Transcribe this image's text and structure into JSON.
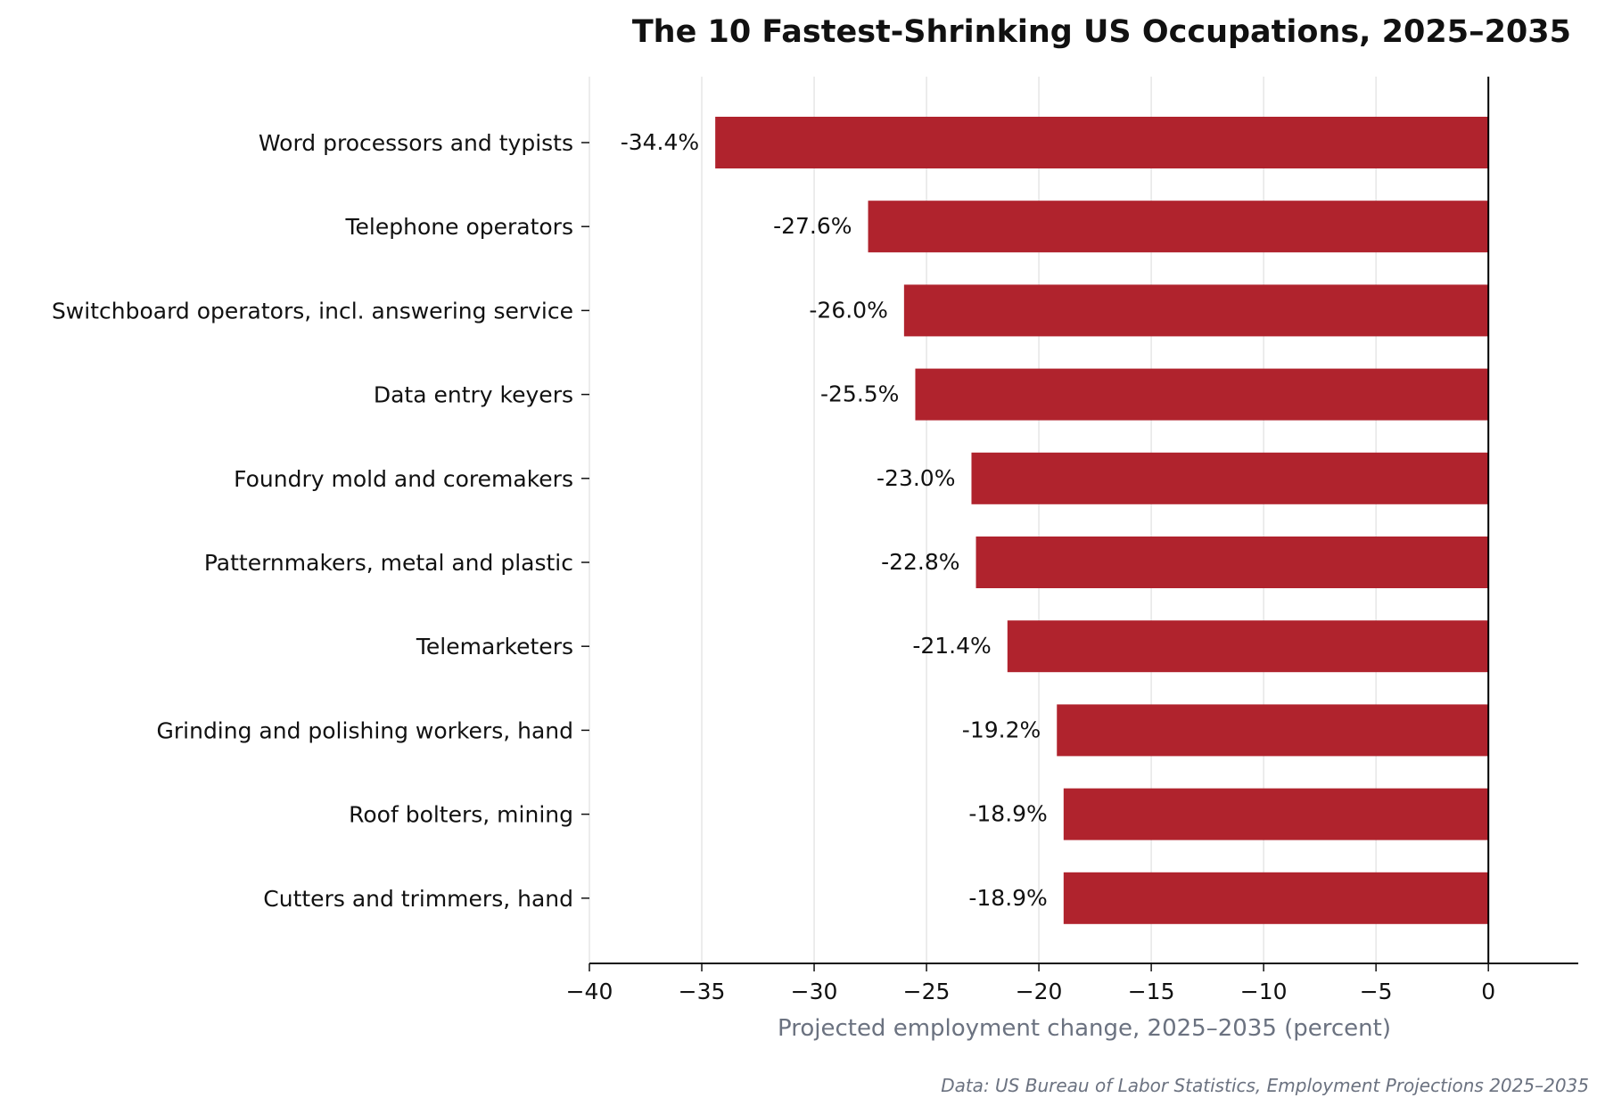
{
  "chart_data": {
    "type": "bar",
    "orientation": "horizontal",
    "title": "The 10 Fastest-Shrinking US Occupations, 2025–2035",
    "xlabel": "Projected employment change, 2025–2035 (percent)",
    "source": "Data: US Bureau of Labor Statistics, Employment Projections 2025–2035",
    "categories": [
      "Word processors and typists",
      "Telephone operators",
      "Switchboard operators, incl. answering service",
      "Data entry keyers",
      "Foundry mold and coremakers",
      "Patternmakers, metal and plastic",
      "Telemarketers",
      "Grinding and polishing workers, hand",
      "Roof bolters, mining",
      "Cutters and trimmers, hand"
    ],
    "values": [
      -34.4,
      -27.6,
      -26.0,
      -25.5,
      -23.0,
      -22.8,
      -21.4,
      -19.2,
      -18.9,
      -18.9
    ],
    "value_labels": [
      "-34.4%",
      "-27.6%",
      "-26.0%",
      "-25.5%",
      "-23.0%",
      "-22.8%",
      "-21.4%",
      "-19.2%",
      "-18.9%",
      "-18.9%"
    ],
    "xlim": [
      -40,
      4
    ],
    "xticks": [
      -40,
      -35,
      -30,
      -25,
      -20,
      -15,
      -10,
      -5,
      0
    ],
    "xtick_labels": [
      "−40",
      "−35",
      "−30",
      "−25",
      "−20",
      "−15",
      "−10",
      "−5",
      "0"
    ],
    "grid": "vertical",
    "bar_color": "#b0232d",
    "zero_line_color": "#000000"
  }
}
